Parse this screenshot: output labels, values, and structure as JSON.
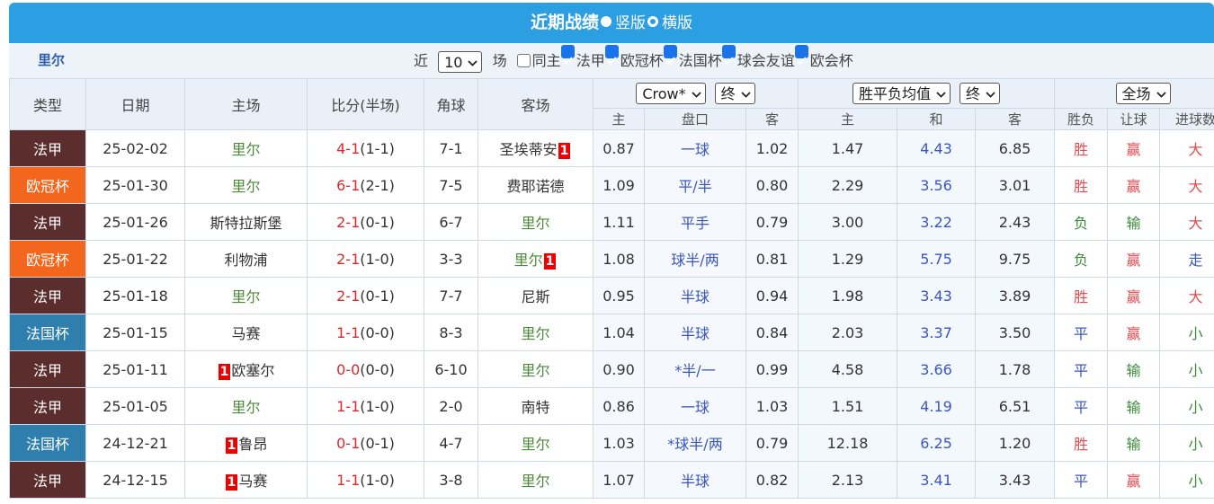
{
  "header": {
    "title": "近期战绩",
    "layouts": [
      {
        "label": "竖版",
        "selected": true
      },
      {
        "label": "横版",
        "selected": false
      }
    ]
  },
  "filter": {
    "team": "里尔",
    "prefix": "近",
    "count": "10",
    "suffix": "场",
    "options": [
      {
        "label": "同主",
        "checked": false
      },
      {
        "label": "法甲",
        "checked": true
      },
      {
        "label": "欧冠杯",
        "checked": true
      },
      {
        "label": "法国杯",
        "checked": true
      },
      {
        "label": "球会友谊",
        "checked": true
      },
      {
        "label": "欧会杯",
        "checked": true
      }
    ]
  },
  "table": {
    "columns": [
      "类型",
      "日期",
      "主场",
      "比分(半场)",
      "角球",
      "客场"
    ],
    "selects": [
      "Crow*",
      "终",
      "胜平负均值",
      "终",
      "全场"
    ],
    "subcolumns": [
      "主",
      "盘口",
      "客",
      "主",
      "和",
      "客",
      "胜负",
      "让球",
      "进球数"
    ],
    "rows": [
      {
        "type": "法甲",
        "date": "25-02-02",
        "home": "里尔",
        "score": "4-1",
        "half": "(1-1)",
        "corners": "7-1",
        "away": "圣埃蒂安",
        "away_red": 1,
        "odds": [
          "0.87",
          "一球",
          "1.02"
        ],
        "avg": [
          "1.47",
          "4.43",
          "6.85"
        ],
        "results": [
          "胜",
          "赢",
          "大"
        ]
      },
      {
        "type": "欧冠杯",
        "date": "25-01-30",
        "home": "里尔",
        "score": "6-1",
        "half": "(2-1)",
        "corners": "7-5",
        "away": "费耶诺德",
        "odds": [
          "1.09",
          "平/半",
          "0.80"
        ],
        "avg": [
          "2.29",
          "3.56",
          "3.01"
        ],
        "results": [
          "胜",
          "赢",
          "大"
        ]
      },
      {
        "type": "法甲",
        "date": "25-01-26",
        "home": "斯特拉斯堡",
        "score": "2-1",
        "half": "(0-1)",
        "corners": "6-7",
        "away": "里尔",
        "odds": [
          "1.11",
          "平手",
          "0.79"
        ],
        "avg": [
          "3.00",
          "3.22",
          "2.43"
        ],
        "results": [
          "负",
          "输",
          "大"
        ]
      },
      {
        "type": "欧冠杯",
        "date": "25-01-22",
        "home": "利物浦",
        "score": "2-1",
        "half": "(1-0)",
        "corners": "3-3",
        "away": "里尔",
        "away_red": 1,
        "odds": [
          "1.08",
          "球半/两",
          "0.81"
        ],
        "avg": [
          "1.29",
          "5.75",
          "9.75"
        ],
        "results": [
          "负",
          "赢",
          "走"
        ]
      },
      {
        "type": "法甲",
        "date": "25-01-18",
        "home": "里尔",
        "score": "2-1",
        "half": "(0-1)",
        "corners": "7-7",
        "away": "尼斯",
        "odds": [
          "0.95",
          "半球",
          "0.94"
        ],
        "avg": [
          "1.98",
          "3.43",
          "3.89"
        ],
        "results": [
          "胜",
          "赢",
          "大"
        ]
      },
      {
        "type": "法国杯",
        "date": "25-01-15",
        "home": "马赛",
        "score": "1-1",
        "half": "(0-0)",
        "corners": "8-3",
        "away": "里尔",
        "odds": [
          "1.04",
          "半球",
          "0.84"
        ],
        "avg": [
          "2.03",
          "3.37",
          "3.50"
        ],
        "results": [
          "平",
          "赢",
          "小"
        ]
      },
      {
        "type": "法甲",
        "date": "25-01-11",
        "home": "欧塞尔",
        "home_red": 1,
        "score": "0-0",
        "half": "(0-0)",
        "corners": "6-10",
        "away": "里尔",
        "odds": [
          "0.90",
          "*半/一",
          "0.99"
        ],
        "avg": [
          "4.58",
          "3.66",
          "1.78"
        ],
        "results": [
          "平",
          "输",
          "小"
        ]
      },
      {
        "type": "法甲",
        "date": "25-01-05",
        "home": "里尔",
        "score": "1-1",
        "half": "(1-0)",
        "corners": "2-0",
        "away": "南特",
        "odds": [
          "0.86",
          "一球",
          "1.03"
        ],
        "avg": [
          "1.51",
          "4.19",
          "6.51"
        ],
        "results": [
          "平",
          "输",
          "小"
        ]
      },
      {
        "type": "法国杯",
        "date": "24-12-21",
        "home": "鲁昂",
        "home_red": 1,
        "score": "0-1",
        "half": "(0-1)",
        "corners": "4-7",
        "away": "里尔",
        "odds": [
          "1.03",
          "*球半/两",
          "0.79"
        ],
        "avg": [
          "12.18",
          "6.25",
          "1.20"
        ],
        "results": [
          "胜",
          "输",
          "小"
        ]
      },
      {
        "type": "法甲",
        "date": "24-12-15",
        "home": "马赛",
        "home_red": 1,
        "score": "1-1",
        "half": "(1-0)",
        "corners": "3-8",
        "away": "里尔",
        "odds": [
          "1.07",
          "半球",
          "0.82"
        ],
        "avg": [
          "2.13",
          "3.41",
          "3.43"
        ],
        "results": [
          "平",
          "赢",
          "小"
        ]
      }
    ]
  },
  "colors": {
    "法甲": "#5b2d2d",
    "欧冠杯": "#f2661d",
    "法国杯": "#2f7fae",
    "胜": "#e04b52",
    "负": "#3d8a3d",
    "平": "#3b55c0",
    "赢": "#e04b52",
    "输": "#3d8a3d",
    "走": "#3b55c0",
    "大": "#e04b52",
    "小": "#3d8a3d"
  }
}
